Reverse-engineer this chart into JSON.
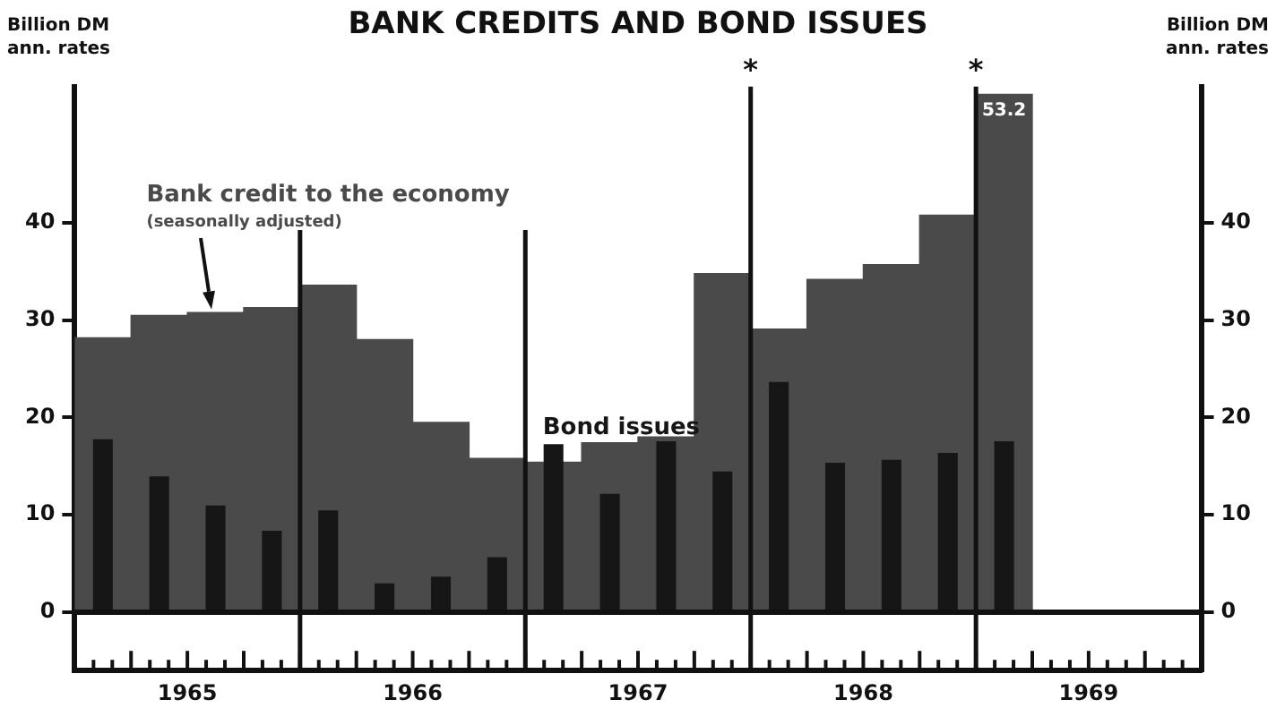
{
  "chart_data": {
    "type": "bar",
    "title": "BANK CREDITS AND BOND ISSUES",
    "ylabel": "Billion DM ann. rates",
    "y2label": "Billion DM ann. rates",
    "x": [
      1965.125,
      1965.375,
      1965.625,
      1965.875,
      1966.125,
      1966.375,
      1966.625,
      1966.875,
      1967.125,
      1967.375,
      1967.625,
      1967.875,
      1968.125,
      1968.375,
      1968.625,
      1968.875,
      1969.125
    ],
    "series": [
      {
        "name": "Bank credit to the economy",
        "color": "#4a4a4a",
        "values": [
          28.2,
          30.5,
          30.8,
          31.3,
          33.6,
          28,
          19.5,
          15.8,
          15.4,
          17.4,
          18,
          34.8,
          29.1,
          34.2,
          35.7,
          40.8,
          53.2
        ],
        "value_labels": [
          null,
          null,
          null,
          null,
          null,
          null,
          null,
          null,
          null,
          null,
          null,
          null,
          null,
          null,
          null,
          null,
          "53.2"
        ]
      },
      {
        "name": "Bond issues",
        "color": "#161616",
        "values": [
          17.7,
          13.9,
          10.9,
          8.3,
          10.4,
          2.9,
          3.6,
          5.6,
          17.2,
          12.1,
          17.5,
          14.4,
          23.6,
          15.3,
          15.6,
          16.3,
          17.5
        ]
      }
    ],
    "annotations": [
      "(seasonally adjusted)"
    ],
    "xlim": [
      1965,
      1970
    ],
    "xticks": [
      {
        "value": 1965,
        "label": null
      },
      {
        "value": 1965.0833,
        "label": null
      },
      {
        "value": 1965.1667,
        "label": null
      },
      {
        "value": 1965.25,
        "label": null
      },
      {
        "value": 1965.3333,
        "label": null
      },
      {
        "value": 1965.4167,
        "label": null
      },
      {
        "value": 1965.5,
        "label": "1965"
      },
      {
        "value": 1965.5833,
        "label": null
      },
      {
        "value": 1965.6667,
        "label": null
      },
      {
        "value": 1965.75,
        "label": null
      },
      {
        "value": 1965.8333,
        "label": null
      },
      {
        "value": 1965.9167,
        "label": null
      },
      {
        "value": 1966,
        "label": null
      },
      {
        "value": 1966.0833,
        "label": null
      },
      {
        "value": 1966.1667,
        "label": null
      },
      {
        "value": 1966.25,
        "label": null
      },
      {
        "value": 1966.3333,
        "label": null
      },
      {
        "value": 1966.4167,
        "label": null
      },
      {
        "value": 1966.5,
        "label": "1966"
      },
      {
        "value": 1966.5833,
        "label": null
      },
      {
        "value": 1966.6667,
        "label": null
      },
      {
        "value": 1966.75,
        "label": null
      },
      {
        "value": 1966.8333,
        "label": null
      },
      {
        "value": 1966.9167,
        "label": null
      },
      {
        "value": 1967,
        "label": null
      },
      {
        "value": 1967.0833,
        "label": null
      },
      {
        "value": 1967.1667,
        "label": null
      },
      {
        "value": 1967.25,
        "label": null
      },
      {
        "value": 1967.3333,
        "label": null
      },
      {
        "value": 1967.4167,
        "label": null
      },
      {
        "value": 1967.5,
        "label": "1967"
      },
      {
        "value": 1967.5833,
        "label": null
      },
      {
        "value": 1967.6667,
        "label": null
      },
      {
        "value": 1967.75,
        "label": null
      },
      {
        "value": 1967.8333,
        "label": null
      },
      {
        "value": 1967.9167,
        "label": null
      },
      {
        "value": 1968,
        "label": null
      },
      {
        "value": 1968.0833,
        "label": null
      },
      {
        "value": 1968.1667,
        "label": null
      },
      {
        "value": 1968.25,
        "label": null
      },
      {
        "value": 1968.3333,
        "label": null
      },
      {
        "value": 1968.4167,
        "label": null
      },
      {
        "value": 1968.5,
        "label": "1968"
      },
      {
        "value": 1968.5833,
        "label": null
      },
      {
        "value": 1968.6667,
        "label": null
      },
      {
        "value": 1968.75,
        "label": null
      },
      {
        "value": 1968.8333,
        "label": null
      },
      {
        "value": 1968.9167,
        "label": null
      },
      {
        "value": 1969,
        "label": null
      },
      {
        "value": 1969.0833,
        "label": null
      },
      {
        "value": 1969.1667,
        "label": null
      },
      {
        "value": 1969.25,
        "label": null
      },
      {
        "value": 1969.3333,
        "label": null
      },
      {
        "value": 1969.4167,
        "label": null
      },
      {
        "value": 1969.5,
        "label": "1969"
      },
      {
        "value": 1969.5833,
        "label": null
      },
      {
        "value": 1969.6667,
        "label": null
      },
      {
        "value": 1969.75,
        "label": null
      },
      {
        "value": 1969.8333,
        "label": null
      },
      {
        "value": 1969.9167,
        "label": null
      },
      {
        "value": 1970,
        "label": null
      }
    ],
    "ylim": [
      -6,
      54
    ],
    "yticks": [
      0,
      10,
      20,
      30,
      40
    ],
    "y2lim": [
      -6,
      54
    ],
    "y2ticks": [
      0,
      10,
      20,
      30,
      40
    ],
    "ref_lines": [
      {
        "axis": "y",
        "value": 0,
        "label": null
      },
      {
        "axis": "x",
        "value": 1966,
        "label": null
      },
      {
        "axis": "x",
        "value": 1967,
        "label": null
      },
      {
        "axis": "x",
        "value": 1968,
        "label": "*"
      },
      {
        "axis": "x",
        "value": 1969,
        "label": "*"
      }
    ],
    "grid": false,
    "legend": false
  }
}
